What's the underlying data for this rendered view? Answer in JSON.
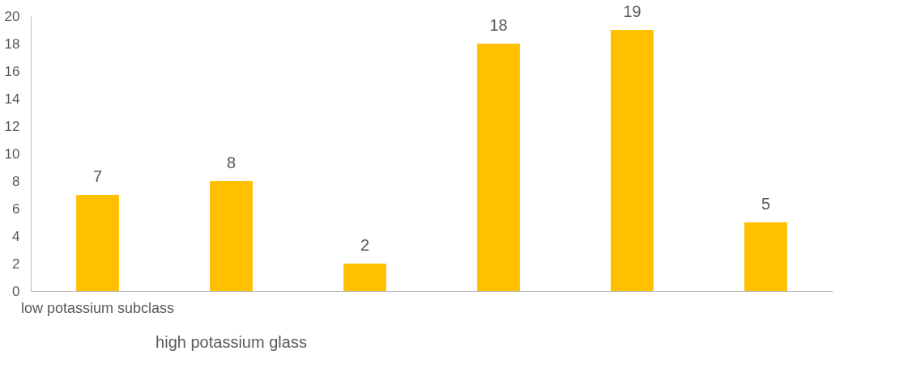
{
  "chart_data": {
    "type": "bar",
    "categories": [
      "low potassium subclass",
      null,
      null,
      null,
      null,
      null
    ],
    "values": [
      7,
      8,
      2,
      18,
      19,
      5
    ],
    "color": "#ffc000",
    "ylim": [
      0,
      20
    ],
    "yticks": [
      0,
      2,
      4,
      6,
      8,
      10,
      12,
      14,
      16,
      18,
      20
    ],
    "grid": false,
    "data_labels": true,
    "annotations": [
      "high potassium glass"
    ]
  }
}
